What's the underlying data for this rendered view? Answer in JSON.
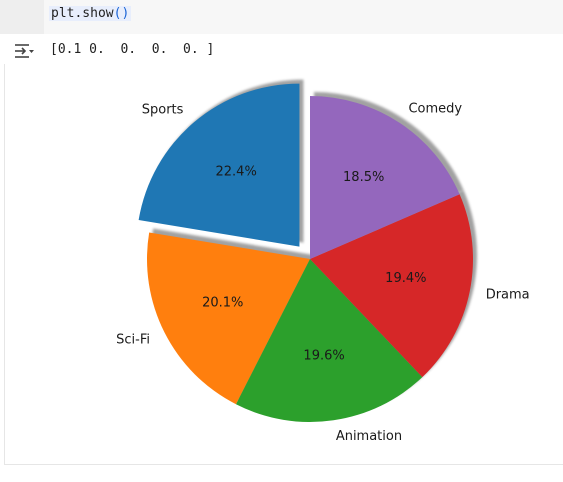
{
  "cell": {
    "code_prefix": "plt.show",
    "code_parens": "()",
    "output_text": "[0.1 0.  0.  0.  0. ]"
  },
  "icons": {
    "output": "output-collapse-icon"
  },
  "chart_data": {
    "type": "pie",
    "title": "",
    "categories": [
      "Sports",
      "Sci-Fi",
      "Animation",
      "Drama",
      "Comedy"
    ],
    "values": [
      22.4,
      20.1,
      19.6,
      19.4,
      18.5
    ],
    "percent_labels": [
      "22.4%",
      "20.1%",
      "19.6%",
      "19.4%",
      "18.5%"
    ],
    "explode": [
      0.1,
      0,
      0,
      0,
      0
    ],
    "colors": [
      "#1f77b4",
      "#ff7f0e",
      "#2ca02c",
      "#d62728",
      "#9467bd"
    ],
    "start_angle": 90,
    "shadow": true,
    "counterclockwise": true
  }
}
